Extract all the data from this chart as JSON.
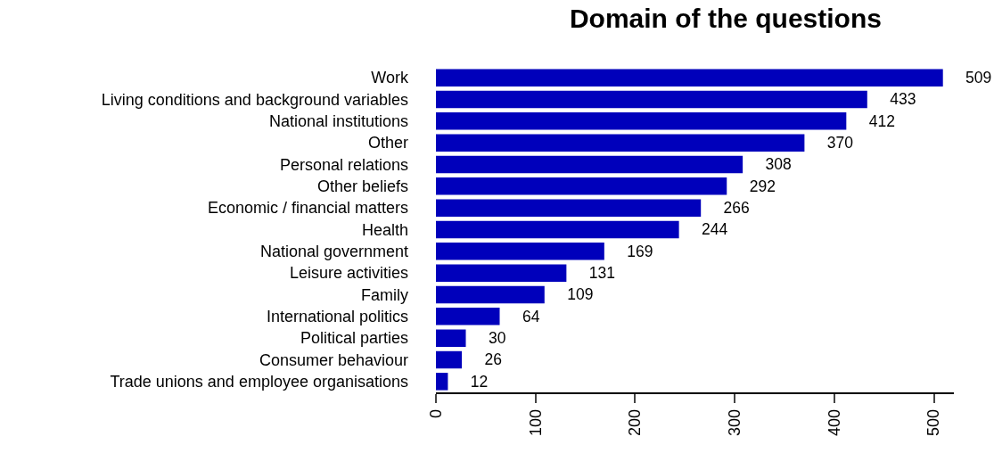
{
  "chart_data": {
    "type": "bar",
    "title": "Domain of the questions",
    "orientation": "horizontal",
    "categories": [
      "Work",
      "Living conditions and background variables",
      "National institutions",
      "Other",
      "Personal relations",
      "Other beliefs",
      "Economic / financial matters",
      "Health",
      "National government",
      "Leisure activities",
      "Family",
      "International politics",
      "Political parties",
      "Consumer behaviour",
      "Trade unions and employee organisations"
    ],
    "values": [
      509,
      433,
      412,
      370,
      308,
      292,
      266,
      244,
      169,
      131,
      109,
      64,
      30,
      26,
      12
    ],
    "color": "#0000bb",
    "xlim": [
      0,
      520
    ],
    "xticks": [
      0,
      100,
      200,
      300,
      400,
      500
    ],
    "grid": false,
    "data_labels": true
  }
}
